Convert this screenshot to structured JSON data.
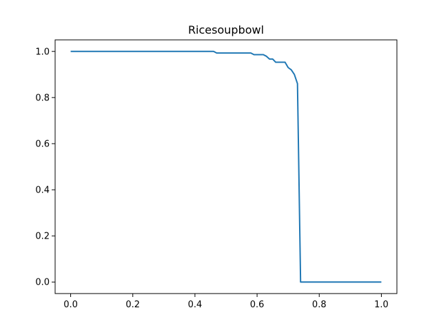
{
  "chart_data": {
    "type": "line",
    "title": "Ricesoupbowl",
    "xlabel": "",
    "ylabel": "",
    "xlim": [
      -0.05,
      1.05
    ],
    "ylim": [
      -0.05,
      1.05
    ],
    "xticks": [
      0.0,
      0.2,
      0.4,
      0.6,
      0.8,
      1.0
    ],
    "xtick_labels": [
      "0.0",
      "0.2",
      "0.4",
      "0.6",
      "0.8",
      "1.0"
    ],
    "yticks": [
      0.0,
      0.2,
      0.4,
      0.6,
      0.8,
      1.0
    ],
    "ytick_labels": [
      "0.0",
      "0.2",
      "0.4",
      "0.6",
      "0.8",
      "1.0"
    ],
    "grid": false,
    "legend": "none",
    "series": [
      {
        "color": "#1f77b4",
        "x": [
          0.0,
          0.46,
          0.47,
          0.58,
          0.59,
          0.62,
          0.63,
          0.64,
          0.65,
          0.66,
          0.67,
          0.69,
          0.7,
          0.71,
          0.72,
          0.73,
          0.74,
          1.0
        ],
        "y": [
          1.0,
          1.0,
          0.993,
          0.993,
          0.986,
          0.986,
          0.979,
          0.967,
          0.967,
          0.953,
          0.953,
          0.953,
          0.93,
          0.92,
          0.9,
          0.86,
          0.0,
          0.0
        ]
      }
    ]
  }
}
